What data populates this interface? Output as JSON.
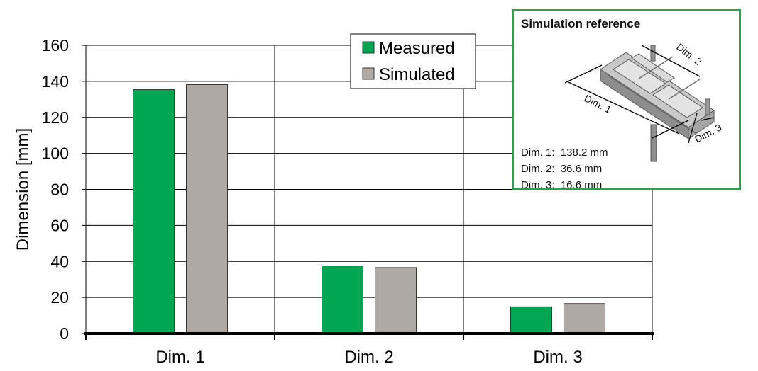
{
  "chart_data": {
    "type": "bar",
    "categories": [
      "Dim. 1",
      "Dim. 2",
      "Dim. 3"
    ],
    "series": [
      {
        "name": "Measured",
        "values": [
          135.5,
          37.5,
          14.8
        ],
        "color": "#00a651"
      },
      {
        "name": "Simulated",
        "values": [
          138.2,
          36.6,
          16.6
        ],
        "color": "#afa9a6"
      }
    ],
    "xlabel": "",
    "ylabel": "Dimension   [mm]",
    "ylim": [
      0,
      160
    ],
    "yticks": [
      0,
      20,
      40,
      60,
      80,
      100,
      120,
      140,
      160
    ],
    "grid": true,
    "legend_position": "top"
  },
  "inset": {
    "title": "Simulation reference",
    "lines": [
      "Dim. 1:  138.2 mm",
      "Dim. 2:  36.6 mm",
      "Dim. 3:  16.6 mm"
    ],
    "figure_labels": {
      "dim1": "Dim. 1",
      "dim2": "Dim. 2",
      "dim3": "Dim. 3"
    },
    "border_color": "#22a54f"
  }
}
